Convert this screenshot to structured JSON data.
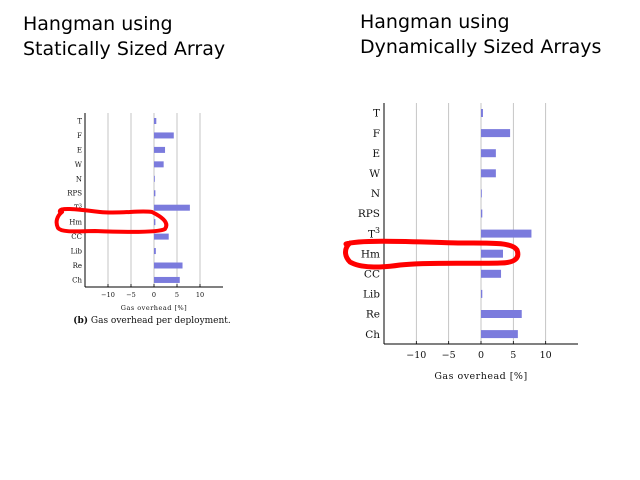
{
  "slide": {
    "title_left": [
      "Hangman using",
      "Statically Sized Array"
    ],
    "title_right": [
      "Hangman using",
      "Dynamically Sized Arrays"
    ]
  },
  "chart_data": [
    {
      "type": "bar",
      "orientation": "horizontal",
      "categories": [
        "T",
        "F",
        "E",
        "W",
        "N",
        "RPS",
        "T3",
        "Hm",
        "CC",
        "Lib",
        "Re",
        "Ch"
      ],
      "values": [
        0.5,
        4.3,
        2.4,
        2.1,
        0.1,
        0.3,
        7.8,
        0.3,
        3.2,
        0.4,
        6.2,
        5.6
      ],
      "xlabel": "Gas overhead [%]",
      "xlim": [
        -15,
        15
      ],
      "xticks": [
        -10,
        -5,
        0,
        5,
        10
      ],
      "grid": "vertical",
      "caption_label": "(b)",
      "caption_text": "Gas overhead per deployment.",
      "bar_color": "#7b7bdd",
      "highlight": "Hm",
      "highlight_color": "#ff0000"
    },
    {
      "type": "bar",
      "orientation": "horizontal",
      "categories": [
        "T",
        "F",
        "E",
        "W",
        "N",
        "RPS",
        "T3",
        "Hm",
        "CC",
        "Lib",
        "Re",
        "Ch"
      ],
      "values": [
        0.3,
        4.5,
        2.3,
        2.3,
        0.1,
        0.2,
        7.8,
        3.4,
        3.1,
        0.2,
        6.3,
        5.7
      ],
      "xlabel": "Gas overhead [%]",
      "xlim": [
        -15,
        15
      ],
      "xticks": [
        -10,
        -5,
        0,
        5,
        10
      ],
      "grid": "vertical",
      "bar_color": "#7b7bdd",
      "highlight": "Hm",
      "highlight_color": "#ff0000"
    }
  ]
}
